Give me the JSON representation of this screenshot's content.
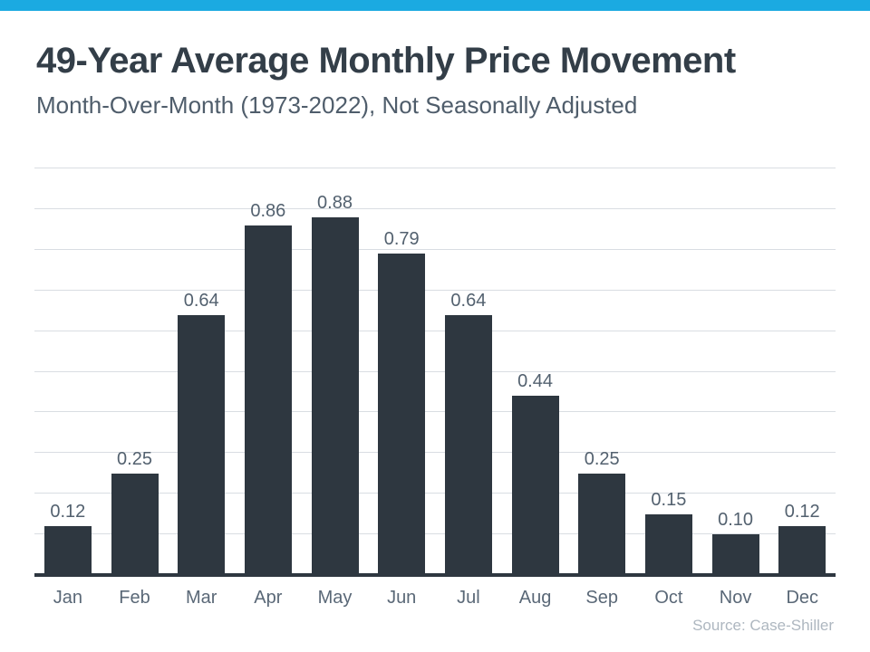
{
  "header": {
    "title": "49-Year Average Monthly Price Movement",
    "subtitle": "Month-Over-Month (1973-2022), Not Seasonally Adjusted"
  },
  "chart_data": {
    "type": "bar",
    "title": "49-Year Average Monthly Price Movement",
    "subtitle": "Month-Over-Month (1973-2022), Not Seasonally Adjusted",
    "categories": [
      "Jan",
      "Feb",
      "Mar",
      "Apr",
      "May",
      "Jun",
      "Jul",
      "Aug",
      "Sep",
      "Oct",
      "Nov",
      "Dec"
    ],
    "values": [
      0.12,
      0.25,
      0.64,
      0.86,
      0.88,
      0.79,
      0.64,
      0.44,
      0.25,
      0.15,
      0.1,
      0.12
    ],
    "xlabel": "",
    "ylabel": "",
    "ylim": [
      0,
      1.0
    ],
    "grid_step": 0.1,
    "grid": true,
    "legend_position": "none",
    "value_label_decimals": 2,
    "colors": {
      "accent_bar": "#1baae1",
      "bar": "#2e3740",
      "gridline": "#d9dde2",
      "axis_line": "#2e3740",
      "title": "#333e48",
      "subtitle": "#4f5d6b",
      "value_label": "#53616f",
      "axis_label": "#5a6877",
      "source": "#aeb7c0"
    }
  },
  "footer": {
    "source": "Source: Case-Shiller"
  }
}
